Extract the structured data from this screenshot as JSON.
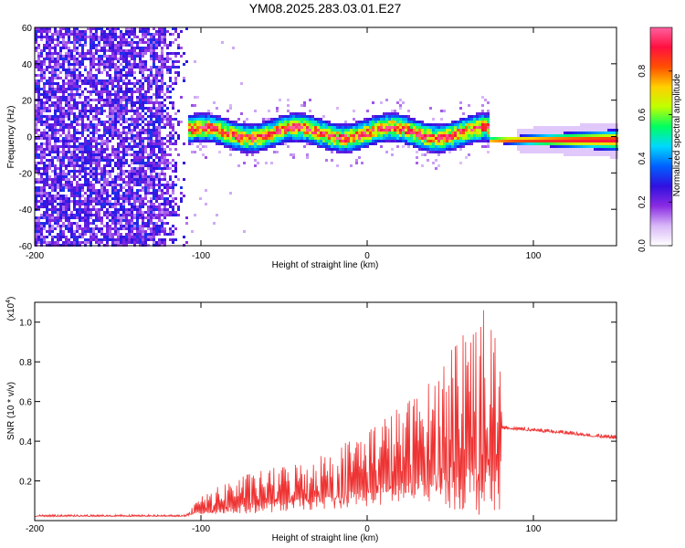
{
  "figure_title": "YM08.2025.283.03.01.E27",
  "chart_data": [
    {
      "type": "heatmap",
      "title": "YM08.2025.283.03.01.E27",
      "xlabel": "Height of straight line (km)",
      "ylabel": "Frequency (Hz)",
      "xlim": [
        -200,
        150
      ],
      "ylim": [
        -60,
        60
      ],
      "x_ticks": [
        -200,
        -100,
        0,
        100
      ],
      "x_tick_labels": [
        "-200",
        "-100",
        "0",
        "100"
      ],
      "y_ticks": [
        -60,
        -40,
        -20,
        0,
        20,
        40,
        60
      ],
      "y_tick_labels": [
        "-60",
        "-40",
        "-20",
        "0",
        "20",
        "40",
        "60"
      ],
      "noise_region_x": [
        -200,
        -107
      ],
      "signal_band": {
        "x_range": [
          -107,
          73
        ],
        "center_frequency_hz": 2,
        "half_width_hz": 8
      },
      "tone_region": {
        "x_range": [
          73,
          150
        ],
        "frequency_hz": -2
      },
      "colorbar": {
        "label": "Normalized spectral amplitude",
        "range": [
          0,
          1
        ],
        "ticks": [
          0.0,
          0.2,
          0.4,
          0.6,
          0.8
        ],
        "tick_labels": [
          "0.0",
          "0.2",
          "0.4",
          "0.6",
          "0.8"
        ],
        "colors": [
          "#ffffff",
          "#d8b8f8",
          "#8a2be2",
          "#3010e0",
          "#0060ff",
          "#00d8ff",
          "#00ff60",
          "#c0ff00",
          "#ffd000",
          "#ff5000",
          "#ff1040",
          "#ff60a0"
        ]
      }
    },
    {
      "type": "line",
      "xlabel": "Height of straight line (km)",
      "ylabel": "SNR (10 * v/v)",
      "y_scale_label": "(x10",
      "y_scale_exponent": "4",
      "y_scale_suffix": ")",
      "xlim": [
        -200,
        150
      ],
      "ylim": [
        0,
        1.1
      ],
      "x_ticks": [
        -200,
        -100,
        0,
        100
      ],
      "x_tick_labels": [
        "-200",
        "-100",
        "0",
        "100"
      ],
      "y_ticks": [
        0.2,
        0.4,
        0.6,
        0.8,
        1.0
      ],
      "y_tick_labels": [
        "0.2",
        "0.4",
        "0.6",
        "0.8",
        "1.0"
      ],
      "color": "#ee3333",
      "series": [
        {
          "name": "SNR",
          "x": [
            -200,
            -150,
            -110,
            -100,
            -80,
            -60,
            -40,
            -20,
            0,
            20,
            40,
            50,
            60,
            70,
            75,
            80,
            81,
            100,
            125,
            150
          ],
          "baseline": [
            0.02,
            0.02,
            0.02,
            0.03,
            0.03,
            0.04,
            0.05,
            0.06,
            0.07,
            0.08,
            0.09,
            0.06,
            0.04,
            0.02,
            0.03,
            0.05,
            0.46,
            0.45,
            0.43,
            0.41
          ],
          "peak": [
            0.03,
            0.03,
            0.03,
            0.12,
            0.22,
            0.26,
            0.3,
            0.36,
            0.48,
            0.58,
            0.72,
            0.9,
            1.06,
            1.1,
            1.0,
            0.82,
            0.48,
            0.47,
            0.45,
            0.43
          ]
        }
      ]
    }
  ]
}
